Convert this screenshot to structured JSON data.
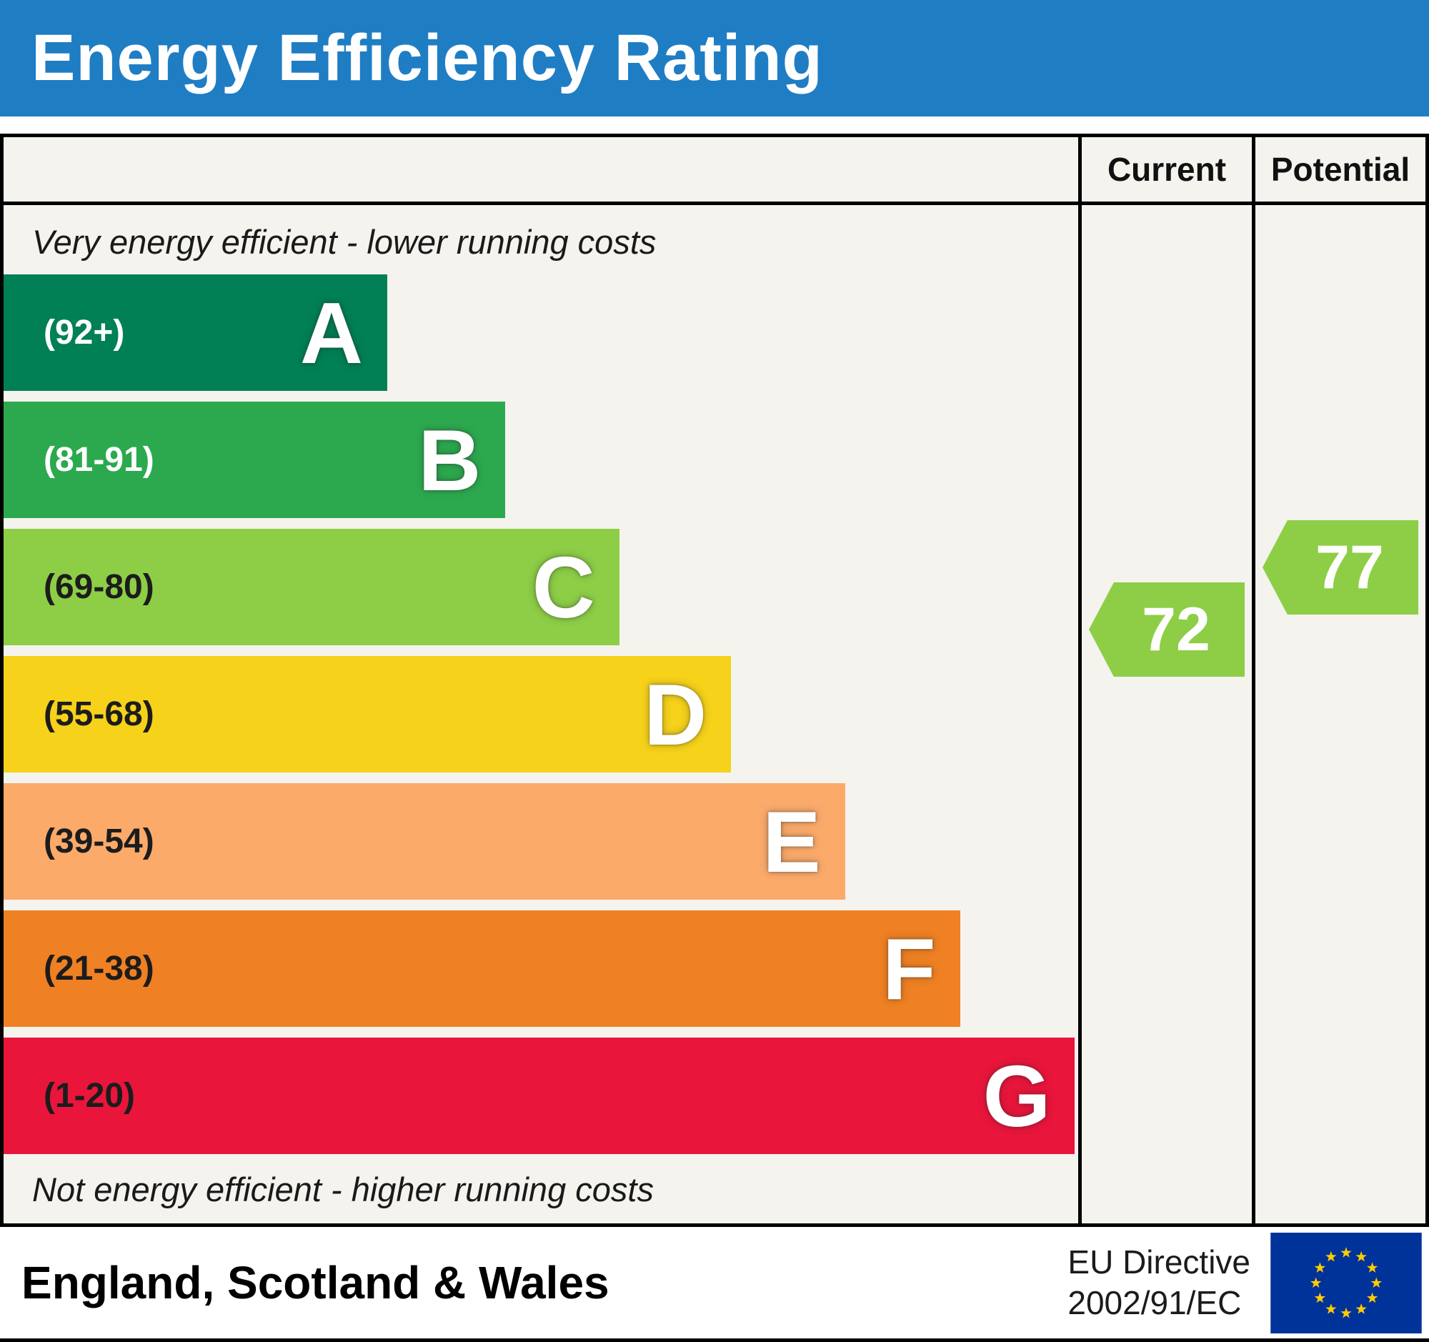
{
  "header": {
    "title": "Energy Efficiency Rating",
    "background_color": "#1f7dc4"
  },
  "table": {
    "current_label": "Current",
    "potential_label": "Potential"
  },
  "notes": {
    "top": "Very energy efficient - lower running costs",
    "bottom": "Not energy efficient - higher running costs"
  },
  "footer": {
    "region": "England, Scotland & Wales",
    "directive_line1": "EU Directive",
    "directive_line2": "2002/91/EC"
  },
  "eu_flag": {
    "background_color": "#003399",
    "star_color": "#ffcc00"
  },
  "colors": {
    "border": "#000000",
    "chart_background": "#f4f3ee"
  },
  "chart_data": {
    "type": "bar",
    "title": "Energy Efficiency Rating",
    "categories": [
      "A",
      "B",
      "C",
      "D",
      "E",
      "F",
      "G"
    ],
    "bands": [
      {
        "letter": "A",
        "range_label": "(92+)",
        "min": 92,
        "max": 100,
        "color": "#008054",
        "label_color": "#ffffff",
        "bar_width_pct": 35.7
      },
      {
        "letter": "B",
        "range_label": "(81-91)",
        "min": 81,
        "max": 91,
        "color": "#2ca94f",
        "label_color": "#ffffff",
        "bar_width_pct": 46.7
      },
      {
        "letter": "C",
        "range_label": "(69-80)",
        "min": 69,
        "max": 80,
        "color": "#8dce46",
        "label_color": "#1c1c1c",
        "bar_width_pct": 57.3
      },
      {
        "letter": "D",
        "range_label": "(55-68)",
        "min": 55,
        "max": 68,
        "color": "#f6d21a",
        "label_color": "#1c1c1c",
        "bar_width_pct": 67.7
      },
      {
        "letter": "E",
        "range_label": "(39-54)",
        "min": 39,
        "max": 54,
        "color": "#fbaa6a",
        "label_color": "#1c1c1c",
        "bar_width_pct": 78.3
      },
      {
        "letter": "F",
        "range_label": "(21-38)",
        "min": 21,
        "max": 38,
        "color": "#ef8023",
        "label_color": "#1c1c1c",
        "bar_width_pct": 89.0
      },
      {
        "letter": "G",
        "range_label": "(1-20)",
        "min": 1,
        "max": 20,
        "color": "#e9153b",
        "label_color": "#1c1c1c",
        "bar_width_pct": 99.7
      }
    ],
    "current": {
      "value": 72,
      "band": "C",
      "color": "#8dce46"
    },
    "potential": {
      "value": 77,
      "band": "C",
      "color": "#8dce46"
    }
  }
}
